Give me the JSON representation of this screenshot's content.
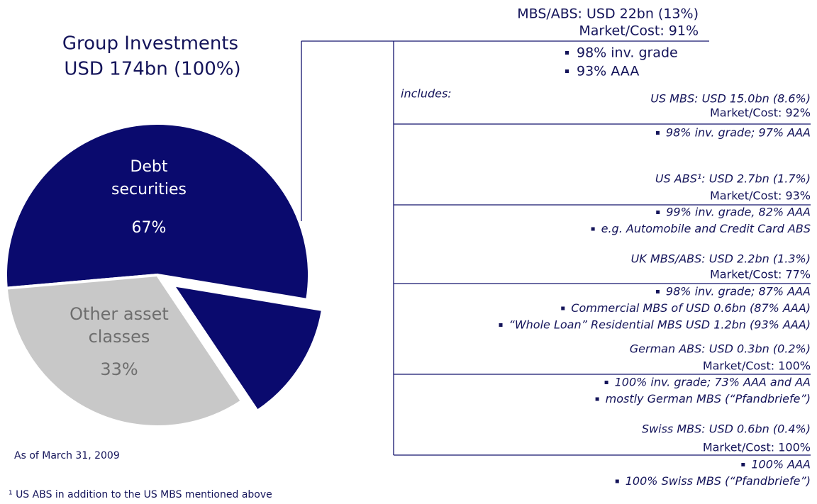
{
  "chart_data": {
    "type": "pie",
    "title": "Group Investments",
    "subtitle": "USD 174bn (100%)",
    "categories": [
      "Debt securities",
      "Other asset classes"
    ],
    "values": [
      67,
      33
    ],
    "value_labels": [
      "67%",
      "33%"
    ],
    "colors": [
      "#0a0a6e",
      "#c8c8c8"
    ],
    "exploded_share": 13,
    "note": "As of March 31, 2009",
    "footnote": "¹  US ABS in addition to the US MBS mentioned above"
  },
  "breakdown": {
    "header": [
      "MBS/ABS: USD 22bn (13%)",
      "Market/Cost: 91%"
    ],
    "bullets": [
      "98% inv. grade",
      "93% AAA"
    ],
    "includes": "includes:",
    "items": [
      {
        "title": "US MBS: USD 15.0bn (8.6%)",
        "ratio": "Market/Cost: 92%",
        "bullets": [
          "98% inv. grade; 97% AAA"
        ]
      },
      {
        "title": "US ABS¹: USD 2.7bn (1.7%)",
        "ratio": "Market/Cost: 93%",
        "bullets": [
          "99% inv. grade, 82% AAA",
          "e.g. Automobile and Credit Card ABS"
        ]
      },
      {
        "title": "UK MBS/ABS: USD 2.2bn (1.3%)",
        "ratio": "Market/Cost: 77%",
        "bullets": [
          "98% inv. grade; 87% AAA",
          "Commercial MBS of USD 0.6bn (87% AAA)",
          "“Whole Loan” Residential MBS USD 1.2bn (93% AAA)"
        ]
      },
      {
        "title": "German ABS: USD 0.3bn (0.2%)",
        "ratio": "Market/Cost: 100%",
        "bullets": [
          "100% inv. grade; 73% AAA and AA",
          "mostly German MBS (“Pfandbriefe”)"
        ]
      },
      {
        "title": "Swiss MBS: USD 0.6bn (0.4%)",
        "ratio": "Market/Cost: 100%",
        "bullets": [
          "100% AAA",
          "100% Swiss MBS (“Pfandbriefe”)"
        ]
      }
    ]
  }
}
